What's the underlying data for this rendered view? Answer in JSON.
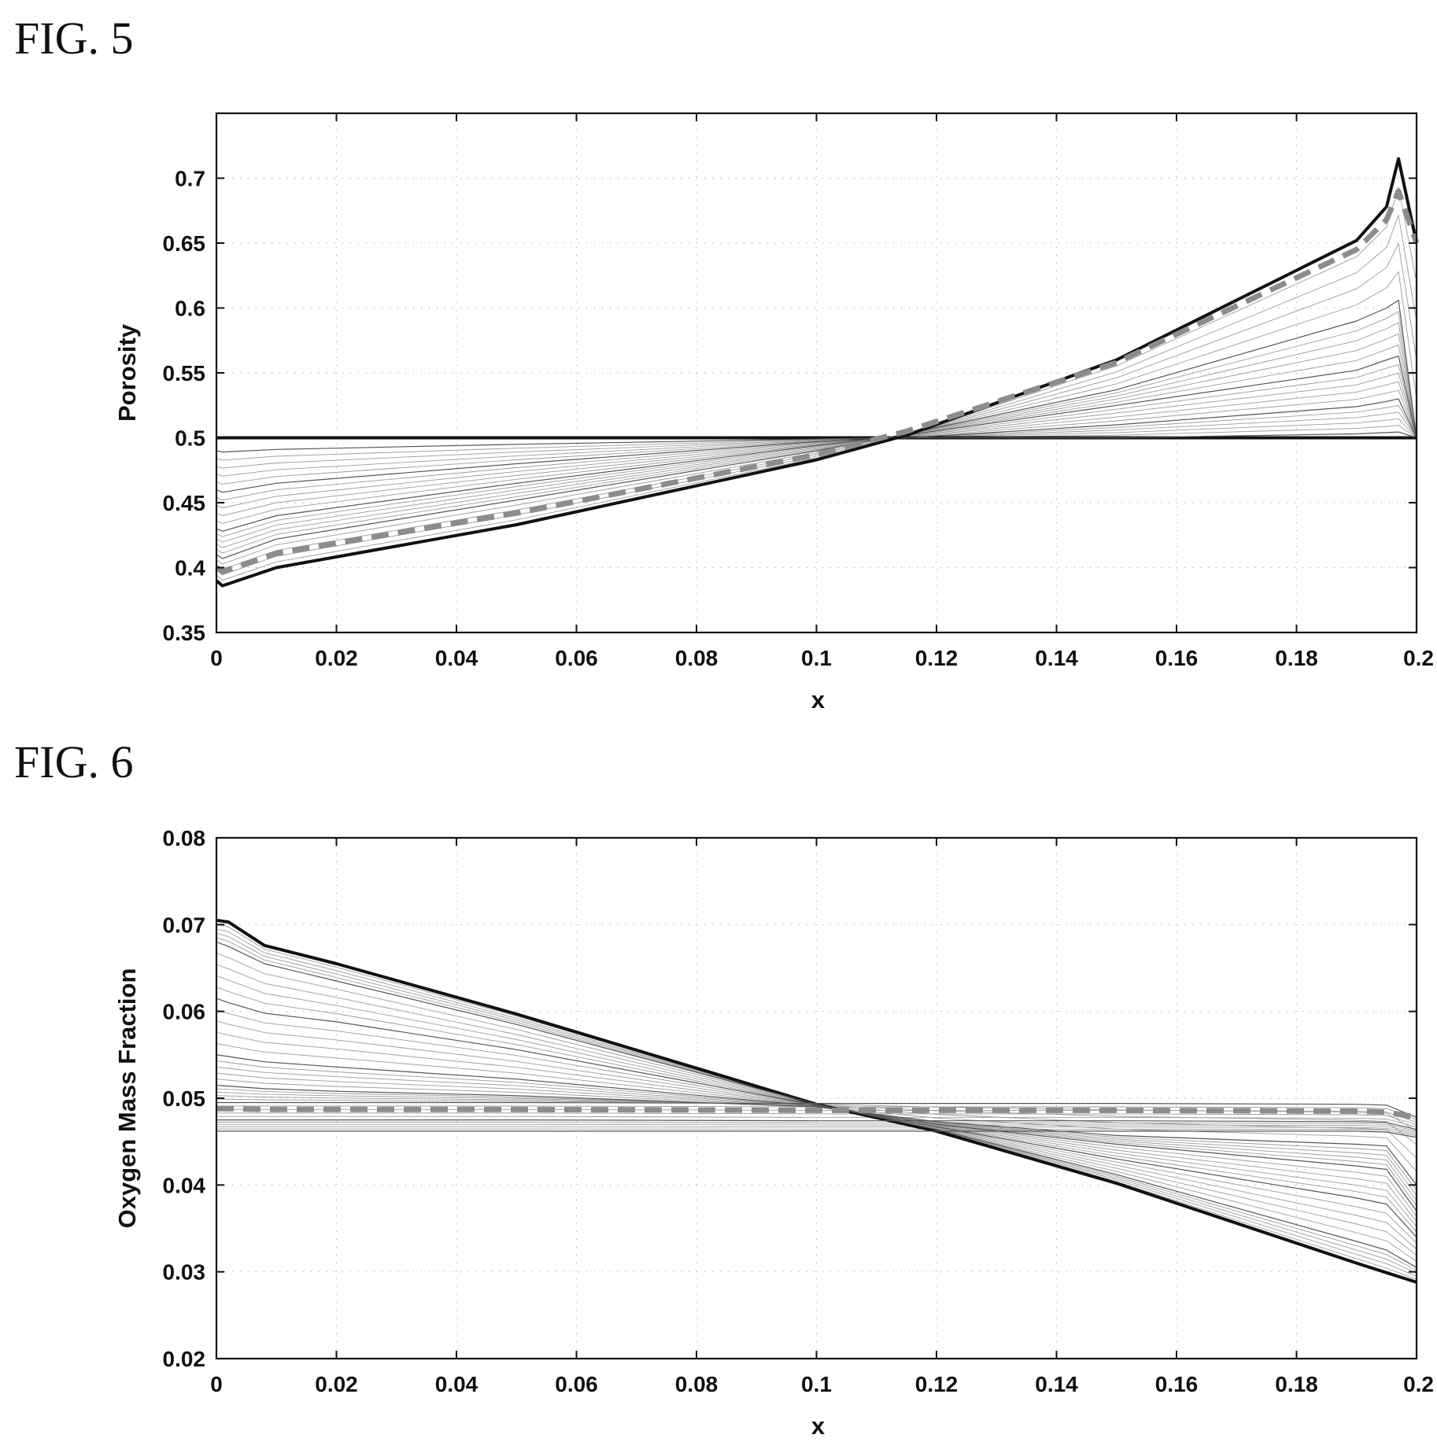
{
  "figures": [
    {
      "label": "FIG. 5",
      "chart_data": {
        "type": "line",
        "title": "",
        "xlabel": "x",
        "ylabel": "Porosity",
        "xlim": [
          0,
          0.2
        ],
        "ylim": [
          0.35,
          0.75
        ],
        "xticks": [
          0,
          0.02,
          0.04,
          0.06,
          0.08,
          0.1,
          0.12,
          0.14,
          0.16,
          0.18,
          0.2
        ],
        "xtick_labels": [
          "0",
          "0.02",
          "0.04",
          "0.06",
          "0.08",
          "0.1",
          "0.12",
          "0.14",
          "0.16",
          "0.18",
          "0.2"
        ],
        "yticks": [
          0.35,
          0.4,
          0.45,
          0.5,
          0.55,
          0.6,
          0.65,
          0.7
        ],
        "ytick_labels": [
          "0.35",
          "0.4",
          "0.45",
          "0.5",
          "0.55",
          "0.6",
          "0.65",
          "0.7"
        ],
        "grid": "dotted",
        "legend": "none",
        "line_color": "#111111",
        "dashed_color": "#8c8c8c",
        "series": [
          {
            "style": "solid-bold",
            "x": [
              0,
              0.2
            ],
            "y": [
              0.5,
              0.5
            ]
          },
          {
            "style": "solid",
            "x": [
              0,
              0.001,
              0.01,
              0.05,
              0.1,
              0.115,
              0.15,
              0.19,
              0.195,
              0.197,
              0.2
            ],
            "y": [
              0.49,
              0.489,
              0.491,
              0.495,
              0.499,
              0.5,
              0.5,
              0.503,
              0.504,
              0.5045,
              0.5
            ]
          },
          {
            "style": "solid",
            "x": [
              0,
              0.001,
              0.01,
              0.05,
              0.1,
              0.115,
              0.15,
              0.19,
              0.195,
              0.197,
              0.2
            ],
            "y": [
              0.46,
              0.458,
              0.465,
              0.48,
              0.497,
              0.5,
              0.51,
              0.524,
              0.528,
              0.53,
              0.5
            ]
          },
          {
            "style": "solid",
            "x": [
              0,
              0.001,
              0.01,
              0.05,
              0.1,
              0.115,
              0.15,
              0.19,
              0.195,
              0.197,
              0.2
            ],
            "y": [
              0.43,
              0.428,
              0.44,
              0.465,
              0.494,
              0.502,
              0.525,
              0.552,
              0.56,
              0.563,
              0.5
            ]
          },
          {
            "style": "solid",
            "x": [
              0,
              0.001,
              0.01,
              0.05,
              0.1,
              0.115,
              0.15,
              0.19,
              0.195,
              0.197,
              0.2
            ],
            "y": [
              0.41,
              0.407,
              0.422,
              0.452,
              0.49,
              0.503,
              0.537,
              0.59,
              0.6,
              0.606,
              0.5
            ]
          },
          {
            "style": "dashed-bold",
            "x": [
              0,
              0.001,
              0.01,
              0.05,
              0.1,
              0.115,
              0.15,
              0.19,
              0.195,
              0.197,
              0.2
            ],
            "y": [
              0.4,
              0.397,
              0.411,
              0.442,
              0.487,
              0.505,
              0.558,
              0.645,
              0.668,
              0.69,
              0.65
            ]
          },
          {
            "style": "solid-bold",
            "x": [
              0,
              0.001,
              0.01,
              0.05,
              0.1,
              0.115,
              0.15,
              0.19,
              0.195,
              0.197,
              0.2
            ],
            "y": [
              0.39,
              0.386,
              0.4,
              0.433,
              0.483,
              0.502,
              0.56,
              0.652,
              0.678,
              0.715,
              0.65
            ]
          }
        ]
      }
    },
    {
      "label": "FIG. 6",
      "chart_data": {
        "type": "line",
        "title": "",
        "xlabel": "x",
        "ylabel": "Oxygen Mass Fraction",
        "xlim": [
          0,
          0.2
        ],
        "ylim": [
          0.02,
          0.08
        ],
        "xticks": [
          0,
          0.02,
          0.04,
          0.06,
          0.08,
          0.1,
          0.12,
          0.14,
          0.16,
          0.18,
          0.2
        ],
        "xtick_labels": [
          "0",
          "0.02",
          "0.04",
          "0.06",
          "0.08",
          "0.1",
          "0.12",
          "0.14",
          "0.16",
          "0.18",
          "0.2"
        ],
        "yticks": [
          0.02,
          0.03,
          0.04,
          0.05,
          0.06,
          0.07,
          0.08
        ],
        "ytick_labels": [
          "0.02",
          "0.03",
          "0.04",
          "0.05",
          "0.06",
          "0.07",
          "0.08"
        ],
        "grid": "dotted",
        "legend": "none",
        "line_color": "#111111",
        "dashed_color": "#8c8c8c",
        "series": [
          {
            "style": "solid-bold",
            "x": [
              0,
              0.002,
              0.008,
              0.02,
              0.05,
              0.1,
              0.12,
              0.15,
              0.19,
              0.195,
              0.2
            ],
            "y": [
              0.0705,
              0.0703,
              0.0676,
              0.0655,
              0.0597,
              0.0493,
              0.0462,
              0.0402,
              0.031,
              0.0299,
              0.0288
            ]
          },
          {
            "style": "solid",
            "x": [
              0,
              0.002,
              0.008,
              0.02,
              0.05,
              0.1,
              0.12,
              0.15,
              0.19,
              0.195,
              0.2
            ],
            "y": [
              0.068,
              0.0675,
              0.0655,
              0.0635,
              0.0585,
              0.0493,
              0.0464,
              0.0412,
              0.0335,
              0.0325,
              0.0305
            ]
          },
          {
            "style": "solid",
            "x": [
              0,
              0.002,
              0.008,
              0.02,
              0.05,
              0.1,
              0.12,
              0.15,
              0.19,
              0.195,
              0.2
            ],
            "y": [
              0.0615,
              0.061,
              0.0598,
              0.0588,
              0.0556,
              0.0492,
              0.0467,
              0.043,
              0.0385,
              0.0378,
              0.034
            ]
          },
          {
            "style": "solid",
            "x": [
              0,
              0.002,
              0.008,
              0.02,
              0.05,
              0.1,
              0.12,
              0.15,
              0.19,
              0.195,
              0.2
            ],
            "y": [
              0.055,
              0.0548,
              0.0542,
              0.0536,
              0.0522,
              0.0491,
              0.047,
              0.0447,
              0.0422,
              0.0418,
              0.037
            ]
          },
          {
            "style": "solid",
            "x": [
              0,
              0.002,
              0.008,
              0.02,
              0.05,
              0.1,
              0.12,
              0.15,
              0.19,
              0.195,
              0.2
            ],
            "y": [
              0.0515,
              0.0514,
              0.0511,
              0.0508,
              0.0503,
              0.049,
              0.0473,
              0.0457,
              0.0447,
              0.0445,
              0.04
            ]
          },
          {
            "style": "dashed-bold",
            "x": [
              0,
              0.002,
              0.008,
              0.02,
              0.05,
              0.1,
              0.12,
              0.15,
              0.19,
              0.195,
              0.2
            ],
            "y": [
              0.0488,
              0.0488,
              0.0487,
              0.0487,
              0.0487,
              0.0486,
              0.0486,
              0.0486,
              0.0485,
              0.0484,
              0.0478
            ]
          },
          {
            "style": "solid",
            "x": [
              0,
              0.002,
              0.008,
              0.02,
              0.05,
              0.1,
              0.12,
              0.15,
              0.19,
              0.195,
              0.2
            ],
            "y": [
              0.0495,
              0.0495,
              0.0495,
              0.0495,
              0.0495,
              0.0494,
              0.0494,
              0.0494,
              0.0493,
              0.0492,
              0.0478
            ]
          },
          {
            "style": "solid",
            "x": [
              0,
              0.002,
              0.008,
              0.02,
              0.05,
              0.1,
              0.12,
              0.15,
              0.19,
              0.195,
              0.2
            ],
            "y": [
              0.0475,
              0.0475,
              0.0475,
              0.0475,
              0.0475,
              0.0474,
              0.0474,
              0.0474,
              0.0473,
              0.0472,
              0.0464
            ]
          },
          {
            "style": "solid",
            "x": [
              0,
              0.002,
              0.008,
              0.02,
              0.05,
              0.1,
              0.12,
              0.15,
              0.19,
              0.195,
              0.2
            ],
            "y": [
              0.0462,
              0.0462,
              0.0462,
              0.0462,
              0.0462,
              0.0462,
              0.0462,
              0.0462,
              0.0462,
              0.0461,
              0.0455
            ]
          }
        ]
      }
    }
  ]
}
